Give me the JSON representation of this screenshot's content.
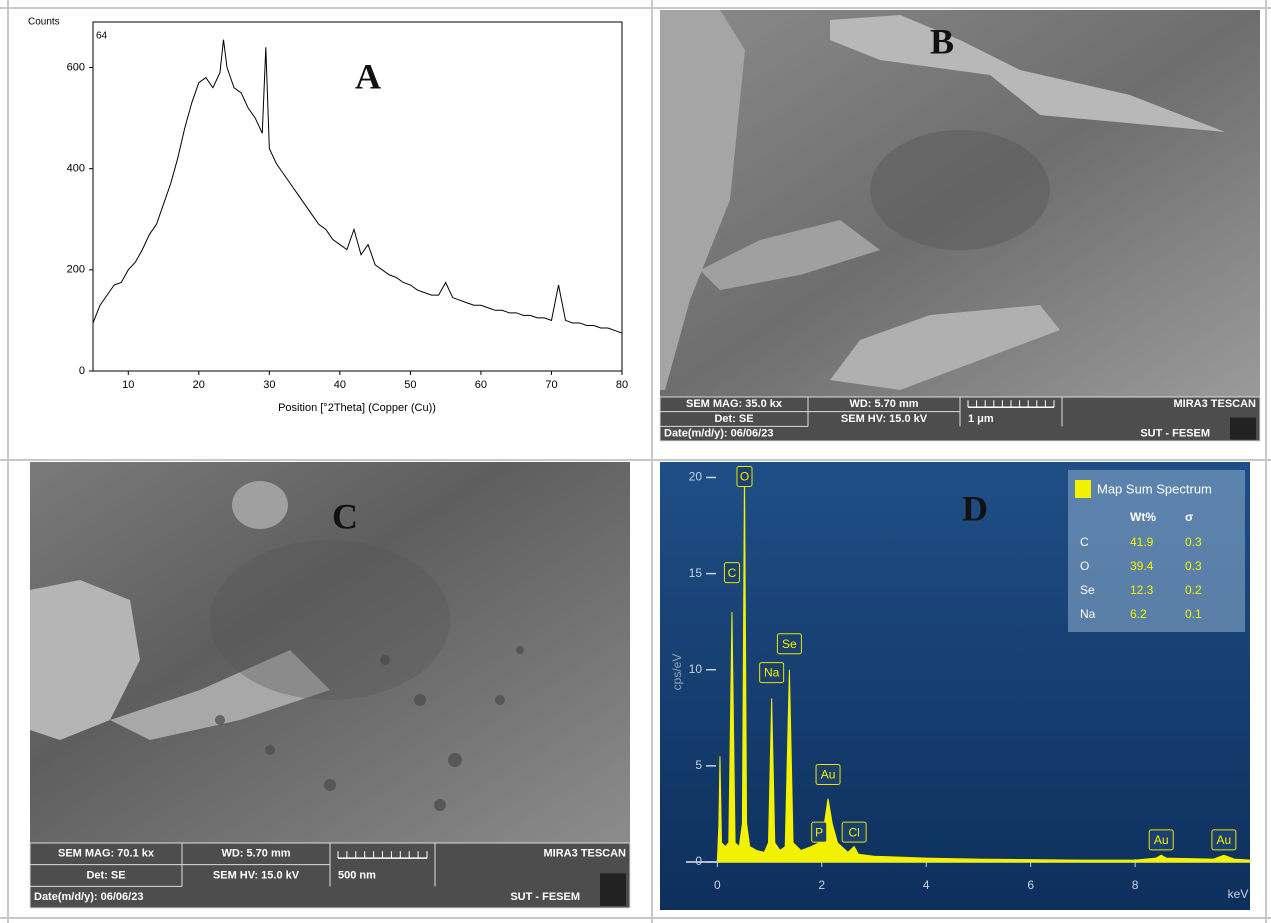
{
  "chart_data": [
    {
      "type": "line",
      "panel_label": "A",
      "annotation": "64",
      "ylabel": "Counts",
      "xlabel": "Position [°2Theta] (Copper (Cu))",
      "x": [
        5,
        6,
        7,
        8,
        9,
        10,
        11,
        12,
        13,
        14,
        15,
        16,
        17,
        18,
        19,
        20,
        21,
        22,
        23,
        23.5,
        24,
        25,
        26,
        27,
        28,
        29,
        29.5,
        30,
        31,
        32,
        33,
        34,
        35,
        36,
        37,
        38,
        39,
        40,
        41,
        42,
        43,
        44,
        45,
        46,
        47,
        48,
        49,
        50,
        51,
        52,
        53,
        54,
        55,
        56,
        57,
        58,
        59,
        60,
        61,
        62,
        63,
        64,
        65,
        66,
        67,
        68,
        69,
        70,
        71,
        72,
        73,
        74,
        75,
        76,
        77,
        78,
        79,
        80
      ],
      "series": [
        {
          "color": "#000000",
          "values": [
            95,
            130,
            150,
            170,
            175,
            200,
            215,
            240,
            270,
            290,
            330,
            370,
            420,
            480,
            530,
            570,
            580,
            560,
            590,
            655,
            600,
            560,
            550,
            520,
            500,
            470,
            640,
            440,
            410,
            390,
            370,
            350,
            330,
            310,
            290,
            280,
            260,
            250,
            240,
            280,
            230,
            250,
            210,
            200,
            190,
            185,
            175,
            170,
            160,
            155,
            150,
            150,
            175,
            145,
            140,
            135,
            130,
            130,
            125,
            120,
            120,
            115,
            115,
            110,
            110,
            105,
            105,
            100,
            170,
            100,
            95,
            95,
            90,
            90,
            85,
            85,
            80,
            75
          ]
        }
      ],
      "xlim": [
        5,
        80
      ],
      "ylim": [
        0,
        690
      ],
      "xticks": [
        10,
        20,
        30,
        40,
        50,
        60,
        70,
        80
      ],
      "yticks": [
        0,
        200,
        400,
        600
      ]
    },
    {
      "type": "area",
      "panel_label": "D",
      "ylabel": "cps/eV",
      "xlabel": "keV",
      "x": [
        0,
        0.03,
        0.05,
        0.08,
        0.15,
        0.22,
        0.28,
        0.34,
        0.42,
        0.48,
        0.52,
        0.56,
        0.62,
        0.75,
        0.9,
        0.98,
        1.04,
        1.1,
        1.2,
        1.3,
        1.38,
        1.45,
        1.6,
        1.8,
        1.95,
        2.0,
        2.05,
        2.12,
        2.2,
        2.3,
        2.5,
        2.62,
        2.7,
        3,
        4,
        5,
        6,
        7,
        8,
        8.4,
        8.5,
        8.6,
        9.5,
        9.7,
        9.9,
        10.2
      ],
      "series": [
        {
          "color": "#f2f200",
          "values": [
            0,
            2,
            5.5,
            1,
            0.8,
            1,
            13,
            1,
            0.8,
            2,
            20.5,
            2,
            0.8,
            0.6,
            0.5,
            1,
            8.5,
            1,
            0.6,
            0.8,
            10,
            1,
            0.6,
            0.8,
            1,
            1.2,
            2,
            3.3,
            2,
            1,
            0.5,
            0.8,
            0.4,
            0.3,
            0.2,
            0.15,
            0.12,
            0.1,
            0.1,
            0.2,
            0.35,
            0.2,
            0.15,
            0.35,
            0.15,
            0.1
          ]
        }
      ],
      "xlim": [
        -0.6,
        10.2
      ],
      "ylim": [
        -0.5,
        20.7
      ],
      "xticks": [
        0,
        2,
        4,
        6,
        8
      ],
      "yticks": [
        0,
        5,
        10,
        15,
        20
      ],
      "peak_labels": [
        {
          "label": "O",
          "x": 0.52,
          "y": 20
        },
        {
          "label": "C",
          "x": 0.28,
          "y": 15
        },
        {
          "label": "Na",
          "x": 1.04,
          "y": 9.8
        },
        {
          "label": "Se",
          "x": 1.38,
          "y": 11.3
        },
        {
          "label": "Au",
          "x": 2.12,
          "y": 4.5
        },
        {
          "label": "P",
          "x": 1.95,
          "y": 1.5
        },
        {
          "label": "Cl",
          "x": 2.62,
          "y": 1.5
        },
        {
          "label": "Au",
          "x": 8.5,
          "y": 1.1
        },
        {
          "label": "Au",
          "x": 9.7,
          "y": 1.1
        }
      ],
      "legend": {
        "title": "Map Sum Spectrum",
        "columns": [
          "Wt%",
          "σ"
        ],
        "rows": [
          [
            "C",
            41.9,
            0.3
          ],
          [
            "O",
            39.4,
            0.3
          ],
          [
            "Se",
            12.3,
            0.2
          ],
          [
            "Na",
            6.2,
            0.1
          ]
        ]
      }
    }
  ],
  "sem_images": [
    {
      "panel_label": "B",
      "mag": "SEM MAG: 35.0 kx",
      "wd": "WD: 5.70 mm",
      "det": "Det: SE",
      "hv": "SEM HV: 15.0 kV",
      "scale": "1 μm",
      "date": "Date(m/d/y): 06/06/23",
      "maker": "MIRA3 TESCAN",
      "lab": "SUT - FESEM"
    },
    {
      "panel_label": "C",
      "mag": "SEM MAG: 70.1 kx",
      "wd": "WD: 5.70 mm",
      "det": "Det: SE",
      "hv": "SEM HV: 15.0 kV",
      "scale": "500 nm",
      "date": "Date(m/d/y): 06/06/23",
      "maker": "MIRA3 TESCAN",
      "lab": "SUT - FESEM"
    }
  ]
}
